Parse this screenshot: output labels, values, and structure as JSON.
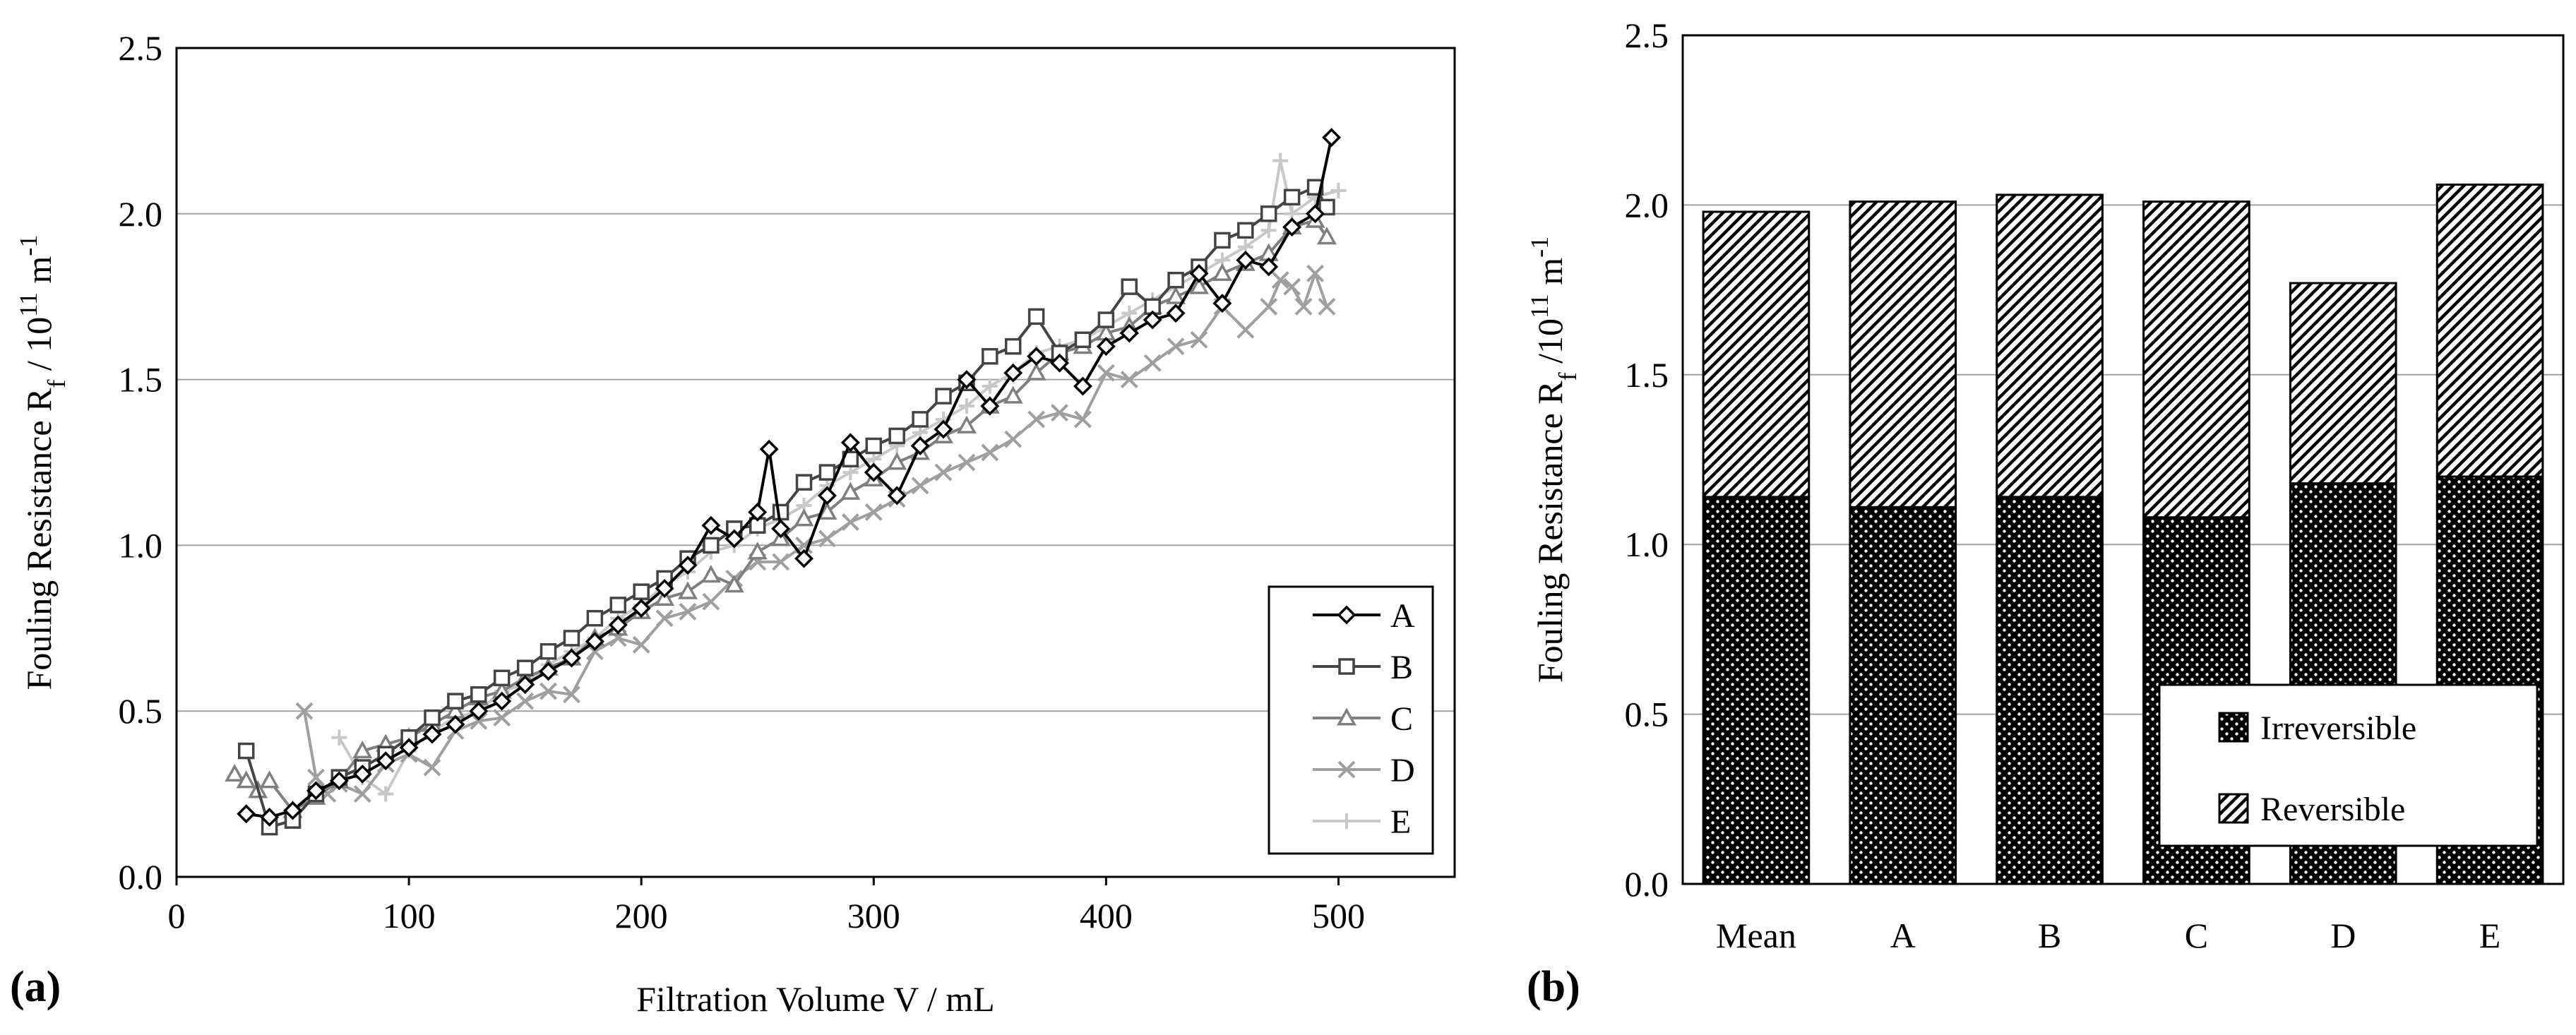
{
  "chart_data": [
    {
      "type": "line",
      "panel_label": "(a)",
      "xlabel": "Filtration Volume V / mL",
      "ylabel": {
        "base": "Fouling Resistance R",
        "sub": "f",
        "mid": " / 10",
        "sup1": "11",
        "unit": " m",
        "sup2": "-1"
      },
      "xlim": [
        0,
        550
      ],
      "ylim": [
        0,
        2.5
      ],
      "xticks": [
        "0",
        "100",
        "200",
        "300",
        "400",
        "500"
      ],
      "yticks": [
        "0.0",
        "0.5",
        "1.0",
        "1.5",
        "2.0",
        "2.5"
      ],
      "grid": "horizontal",
      "legend_position": "bottom-right",
      "series": [
        {
          "name": "A",
          "marker": "diamond",
          "color": "#000000",
          "x": [
            30,
            40,
            50,
            60,
            70,
            80,
            90,
            100,
            110,
            120,
            130,
            140,
            150,
            160,
            170,
            180,
            190,
            200,
            210,
            220,
            230,
            240,
            250,
            255,
            260,
            270,
            280,
            290,
            300,
            310,
            320,
            330,
            340,
            350,
            360,
            370,
            380,
            390,
            400,
            410,
            420,
            430,
            440,
            450,
            460,
            470,
            480,
            490,
            497
          ],
          "y": [
            0.19,
            0.18,
            0.2,
            0.26,
            0.29,
            0.31,
            0.35,
            0.39,
            0.43,
            0.46,
            0.5,
            0.53,
            0.58,
            0.62,
            0.66,
            0.71,
            0.76,
            0.81,
            0.87,
            0.94,
            1.06,
            1.02,
            1.1,
            1.29,
            1.05,
            0.96,
            1.15,
            1.31,
            1.22,
            1.15,
            1.3,
            1.35,
            1.5,
            1.42,
            1.52,
            1.57,
            1.55,
            1.48,
            1.6,
            1.64,
            1.68,
            1.7,
            1.82,
            1.73,
            1.86,
            1.84,
            1.96,
            2.0,
            2.23
          ]
        },
        {
          "name": "B",
          "marker": "square",
          "color": "#444444",
          "x": [
            30,
            40,
            50,
            60,
            70,
            80,
            90,
            100,
            110,
            120,
            130,
            140,
            150,
            160,
            170,
            180,
            190,
            200,
            210,
            220,
            230,
            240,
            250,
            260,
            270,
            280,
            290,
            300,
            310,
            320,
            330,
            340,
            350,
            360,
            370,
            380,
            390,
            400,
            410,
            420,
            430,
            440,
            450,
            460,
            470,
            480,
            490,
            495
          ],
          "y": [
            0.38,
            0.15,
            0.17,
            0.25,
            0.3,
            0.33,
            0.37,
            0.42,
            0.48,
            0.53,
            0.55,
            0.6,
            0.63,
            0.68,
            0.72,
            0.78,
            0.82,
            0.86,
            0.9,
            0.96,
            1.0,
            1.05,
            1.06,
            1.1,
            1.19,
            1.22,
            1.26,
            1.3,
            1.33,
            1.38,
            1.45,
            1.49,
            1.57,
            1.6,
            1.69,
            1.58,
            1.62,
            1.68,
            1.78,
            1.72,
            1.8,
            1.84,
            1.92,
            1.95,
            2.0,
            2.05,
            2.08,
            2.02
          ]
        },
        {
          "name": "C",
          "marker": "triangle",
          "color": "#7f7f7f",
          "x": [
            25,
            30,
            35,
            40,
            50,
            60,
            70,
            80,
            90,
            100,
            110,
            120,
            130,
            140,
            150,
            160,
            170,
            180,
            190,
            200,
            210,
            220,
            230,
            240,
            250,
            260,
            270,
            280,
            290,
            300,
            310,
            320,
            330,
            340,
            350,
            360,
            370,
            380,
            390,
            400,
            410,
            420,
            430,
            440,
            450,
            460,
            470,
            480,
            490,
            495
          ],
          "y": [
            0.31,
            0.29,
            0.26,
            0.29,
            0.2,
            0.24,
            0.29,
            0.38,
            0.4,
            0.42,
            0.46,
            0.5,
            0.54,
            0.56,
            0.6,
            0.63,
            0.66,
            0.72,
            0.75,
            0.8,
            0.84,
            0.86,
            0.91,
            0.88,
            0.98,
            1.02,
            1.08,
            1.1,
            1.16,
            1.2,
            1.25,
            1.28,
            1.33,
            1.36,
            1.42,
            1.45,
            1.52,
            1.58,
            1.6,
            1.64,
            1.66,
            1.72,
            1.75,
            1.78,
            1.82,
            1.85,
            1.88,
            1.96,
            1.98,
            1.93
          ]
        },
        {
          "name": "D",
          "marker": "x",
          "color": "#9f9f9f",
          "x": [
            55,
            60,
            65,
            70,
            80,
            90,
            100,
            110,
            120,
            130,
            140,
            150,
            160,
            170,
            180,
            190,
            200,
            210,
            220,
            230,
            240,
            250,
            260,
            270,
            280,
            290,
            300,
            310,
            320,
            330,
            340,
            350,
            360,
            370,
            380,
            390,
            400,
            410,
            420,
            430,
            440,
            450,
            460,
            470,
            475,
            480,
            485,
            490,
            495
          ],
          "y": [
            0.5,
            0.3,
            0.25,
            0.28,
            0.25,
            0.34,
            0.37,
            0.33,
            0.44,
            0.47,
            0.48,
            0.53,
            0.56,
            0.55,
            0.68,
            0.72,
            0.7,
            0.78,
            0.8,
            0.83,
            0.9,
            0.95,
            0.95,
            1.0,
            1.02,
            1.07,
            1.1,
            1.14,
            1.18,
            1.22,
            1.25,
            1.28,
            1.32,
            1.38,
            1.4,
            1.38,
            1.52,
            1.5,
            1.55,
            1.6,
            1.62,
            1.72,
            1.65,
            1.72,
            1.8,
            1.78,
            1.72,
            1.82,
            1.72
          ]
        },
        {
          "name": "E",
          "marker": "plus",
          "color": "#c8c8c8",
          "x": [
            70,
            80,
            90,
            100,
            110,
            120,
            130,
            140,
            150,
            160,
            170,
            180,
            190,
            200,
            210,
            220,
            230,
            240,
            250,
            260,
            270,
            280,
            290,
            300,
            310,
            320,
            330,
            340,
            350,
            360,
            370,
            380,
            390,
            400,
            410,
            420,
            430,
            440,
            450,
            460,
            470,
            475,
            480,
            490,
            500
          ],
          "y": [
            0.42,
            0.3,
            0.25,
            0.38,
            0.44,
            0.48,
            0.5,
            0.56,
            0.58,
            0.64,
            0.68,
            0.72,
            0.78,
            0.82,
            0.88,
            0.92,
            0.98,
            1.0,
            1.05,
            1.08,
            1.12,
            1.18,
            1.22,
            1.26,
            1.3,
            1.34,
            1.38,
            1.42,
            1.48,
            1.52,
            1.58,
            1.6,
            1.62,
            1.66,
            1.7,
            1.74,
            1.78,
            1.82,
            1.86,
            1.9,
            1.95,
            2.16,
            2.0,
            2.05,
            2.07
          ]
        }
      ]
    },
    {
      "type": "bar",
      "stacked": true,
      "panel_label": "(b)",
      "xlabel": "",
      "ylabel": {
        "base": "Fouling Resistance R",
        "sub": "f",
        "mid": " /10",
        "sup1": "11",
        "unit": " m",
        "sup2": "-1"
      },
      "ylim": [
        0,
        2.5
      ],
      "yticks": [
        "0.0",
        "0.5",
        "1.0",
        "1.5",
        "2.0",
        "2.5"
      ],
      "grid": "horizontal",
      "legend_position": "bottom-right",
      "categories": [
        "Mean",
        "A",
        "B",
        "C",
        "D",
        "E"
      ],
      "series": [
        {
          "name": "Irreversible",
          "pattern": "dots",
          "values": [
            1.14,
            1.11,
            1.14,
            1.08,
            1.18,
            1.2
          ]
        },
        {
          "name": "Reversible",
          "pattern": "hatch",
          "values": [
            0.84,
            0.9,
            0.89,
            0.93,
            0.59,
            0.86
          ]
        }
      ]
    }
  ]
}
